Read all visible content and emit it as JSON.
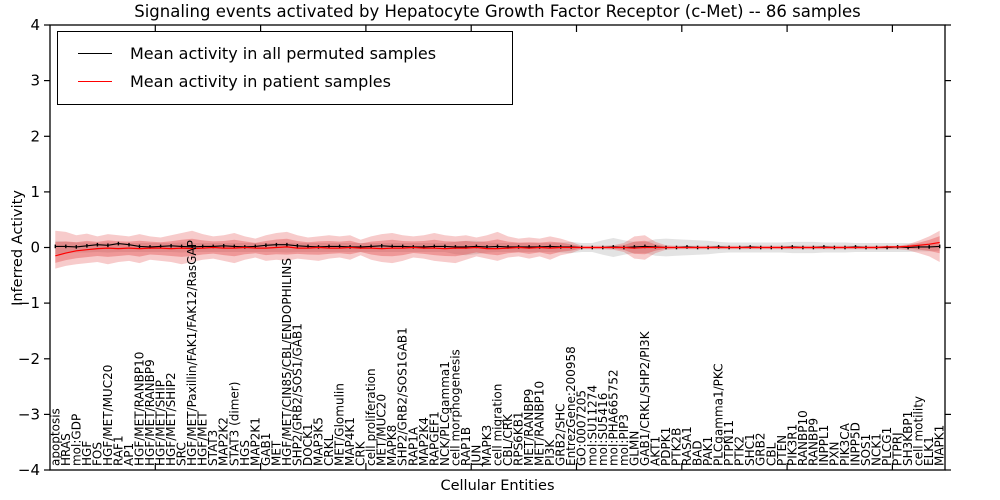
{
  "title": "Signaling events activated by Hepatocyte Growth Factor Receptor (c-Met) -- 86 samples",
  "legend": {
    "position": "upper left",
    "entries": [
      {
        "label": "Mean activity in all permuted samples",
        "color": "#000000"
      },
      {
        "label": "Mean activity in patient samples",
        "color": "#ff0000"
      }
    ]
  },
  "colors": {
    "permuted_line": "#000000",
    "patient_line": "#ff0000",
    "patient_band": "#e03030",
    "permuted_band": "#999999",
    "frame": "#000000"
  },
  "chart_data": {
    "type": "line",
    "title": "Signaling events activated by Hepatocyte Growth Factor Receptor (c-Met) -- 86 samples",
    "xlabel": "Cellular Entities",
    "ylabel": "Inferred Activity",
    "ylim": [
      -4,
      4
    ],
    "ytick_labels": [
      "4",
      "3",
      "2",
      "1",
      "0",
      "−1",
      "−2",
      "−3",
      "−4"
    ],
    "ytick_values": [
      4,
      3,
      2,
      1,
      0,
      -1,
      -2,
      -3,
      -4
    ],
    "grid": false,
    "legend_position": "upper left",
    "categories": [
      "apoptosis",
      "HRAS",
      "mol:GDP",
      "HGF",
      "FOS",
      "HGF/MET/MUC20",
      "RAF1",
      "AP1",
      "HGF/MET/RANBP10",
      "HGF/MET/RANBP9",
      "HGF/MET/SHIP",
      "HGF/MET/SHIP2",
      "SRC",
      "HGF/MET/Paxillin/FAK1/FAK12/RasGAP",
      "HGF/MET",
      "STAT3",
      "MAP2K2",
      "STAT3 (dimer)",
      "HGS",
      "MAP2K1",
      "GAB1",
      "MET",
      "HGF/MET/CIN85/CBL/ENDOPHILINS",
      "SHP2/GRB2/SOS1/GAB1",
      "DOCK1",
      "MAP3K5",
      "CRKL",
      "MET/Glomulin",
      "MAP4K1",
      "CRK",
      "cell proliferation",
      "MET/MUC20",
      "MAPK8",
      "SHP2/GRB2/SOS1GAB1",
      "RAP1A",
      "MAP2K4",
      "RAPGEF1",
      "NCK/PLCgamma1",
      "cell morphogenesis",
      "RAP1B",
      "JUN",
      "MAPK3",
      "cell migration",
      "CBL/CRK",
      "RPS6KB1",
      "MET/RANBP9",
      "MET/RANBP10",
      "PI3K",
      "GRB2/SHC",
      "EntrezGene:200958",
      "GO:0007205",
      "mol:SU11274",
      "mol:SU5416",
      "mol:PHA665752",
      "mol:PIP3",
      "GLMN",
      "GAB1/CRKL/SHP2/PI3K",
      "AKT1",
      "PDPK1",
      "PTK2B",
      "RASA1",
      "BAD",
      "PAK1",
      "PLCgamma1/PKC",
      "PTPN11",
      "PTK2",
      "SHC1",
      "GRB2",
      "CBL",
      "PTEN",
      "PIK3R1",
      "RANBP10",
      "RANBP9",
      "INPPL1",
      "PXN",
      "PIK3CA",
      "INPP5D",
      "SOS1",
      "NCK1",
      "PLCG1",
      "PTPRJ",
      "SH3KBP1",
      "cell motility",
      "ELK1",
      "MAPK1"
    ],
    "series": [
      {
        "name": "Mean activity in all permuted samples",
        "color": "#000000",
        "values": [
          0.02,
          0.02,
          0.01,
          0.03,
          0.05,
          0.04,
          0.07,
          0.05,
          0.02,
          0.01,
          0.02,
          0.03,
          0.02,
          0.01,
          0.02,
          0.02,
          0.03,
          0.02,
          0.01,
          0.02,
          0.04,
          0.05,
          0.05,
          0.03,
          0.02,
          0.01,
          0.02,
          0.02,
          0.01,
          0.01,
          0.02,
          0.03,
          0.02,
          0.02,
          0.01,
          0.01,
          0.02,
          0.02,
          0.01,
          0.01,
          0.02,
          0.01,
          0.02,
          0.01,
          0.01,
          0.01,
          0.01,
          0.02,
          0.01,
          0.01,
          0.0,
          0.0,
          0.0,
          0.01,
          0.0,
          0.01,
          0.02,
          0.01,
          0.0,
          0.0,
          0.01,
          0.0,
          0.0,
          0.01,
          0.0,
          0.0,
          0.01,
          0.0,
          0.0,
          0.0,
          0.01,
          0.0,
          0.0,
          0.01,
          0.0,
          0.0,
          0.01,
          0.0,
          0.0,
          0.0,
          0.01,
          0.0,
          0.01,
          0.01,
          0.02
        ],
        "band_hi": [
          0.12,
          0.1,
          0.09,
          0.09,
          0.08,
          0.09,
          0.08,
          0.08,
          0.08,
          0.08,
          0.08,
          0.08,
          0.09,
          0.08,
          0.08,
          0.08,
          0.08,
          0.08,
          0.08,
          0.08,
          0.08,
          0.08,
          0.09,
          0.08,
          0.08,
          0.08,
          0.08,
          0.08,
          0.08,
          0.08,
          0.08,
          0.08,
          0.08,
          0.08,
          0.08,
          0.08,
          0.08,
          0.08,
          0.1,
          0.12,
          0.12,
          0.09,
          0.08,
          0.08,
          0.08,
          0.08,
          0.08,
          0.08,
          0.09,
          0.1,
          0.08,
          0.08,
          0.13,
          0.17,
          0.13,
          0.1,
          0.1,
          0.15,
          0.16,
          0.15,
          0.14,
          0.13,
          0.12,
          0.1,
          0.09,
          0.09,
          0.09,
          0.09,
          0.09,
          0.09,
          0.1,
          0.1,
          0.1,
          0.09,
          0.09,
          0.09,
          0.08,
          0.08,
          0.08,
          0.08,
          0.08,
          0.08,
          0.07,
          0.07,
          0.06
        ],
        "band_lo": [
          -0.12,
          -0.1,
          -0.09,
          -0.09,
          -0.08,
          -0.09,
          -0.08,
          -0.08,
          -0.08,
          -0.08,
          -0.08,
          -0.08,
          -0.09,
          -0.08,
          -0.08,
          -0.08,
          -0.08,
          -0.08,
          -0.08,
          -0.08,
          -0.08,
          -0.08,
          -0.09,
          -0.08,
          -0.08,
          -0.08,
          -0.08,
          -0.08,
          -0.08,
          -0.08,
          -0.08,
          -0.08,
          -0.08,
          -0.08,
          -0.08,
          -0.08,
          -0.08,
          -0.08,
          -0.12,
          -0.14,
          -0.12,
          -0.09,
          -0.08,
          -0.08,
          -0.08,
          -0.08,
          -0.08,
          -0.08,
          -0.09,
          -0.1,
          -0.08,
          -0.08,
          -0.13,
          -0.17,
          -0.13,
          -0.1,
          -0.1,
          -0.15,
          -0.16,
          -0.15,
          -0.14,
          -0.13,
          -0.12,
          -0.1,
          -0.09,
          -0.09,
          -0.09,
          -0.09,
          -0.09,
          -0.09,
          -0.1,
          -0.1,
          -0.1,
          -0.09,
          -0.09,
          -0.09,
          -0.08,
          -0.08,
          -0.08,
          -0.08,
          -0.08,
          -0.08,
          -0.07,
          -0.07,
          -0.06
        ]
      },
      {
        "name": "Mean activity in patient samples",
        "color": "#ff0000",
        "values": [
          -0.15,
          -0.1,
          -0.06,
          -0.04,
          -0.02,
          -0.01,
          -0.02,
          -0.01,
          -0.02,
          -0.01,
          -0.01,
          -0.02,
          -0.01,
          -0.02,
          -0.01,
          0.0,
          -0.01,
          -0.01,
          0.0,
          -0.01,
          -0.01,
          0.0,
          0.01,
          -0.01,
          -0.01,
          0.0,
          -0.01,
          -0.01,
          0.0,
          -0.01,
          -0.01,
          -0.02,
          -0.01,
          -0.01,
          0.0,
          -0.01,
          -0.01,
          -0.02,
          -0.01,
          -0.01,
          0.0,
          -0.02,
          -0.02,
          -0.01,
          0.0,
          -0.01,
          0.0,
          -0.01,
          0.0,
          0.0,
          0.0,
          0.0,
          0.0,
          0.0,
          0.0,
          -0.01,
          0.0,
          0.0,
          0.0,
          0.0,
          0.0,
          0.0,
          0.0,
          0.0,
          0.0,
          0.0,
          0.0,
          0.0,
          0.0,
          0.0,
          0.0,
          0.0,
          0.0,
          0.0,
          0.0,
          0.0,
          0.0,
          0.0,
          0.0,
          0.01,
          0.01,
          0.02,
          0.04,
          0.06,
          0.09
        ],
        "band_hi": [
          0.3,
          0.28,
          0.22,
          0.25,
          0.2,
          0.24,
          0.22,
          0.2,
          0.24,
          0.2,
          0.18,
          0.22,
          0.26,
          0.3,
          0.24,
          0.2,
          0.22,
          0.26,
          0.2,
          0.16,
          0.22,
          0.26,
          0.28,
          0.22,
          0.18,
          0.2,
          0.22,
          0.2,
          0.22,
          0.14,
          0.2,
          0.24,
          0.26,
          0.22,
          0.2,
          0.22,
          0.26,
          0.22,
          0.2,
          0.22,
          0.18,
          0.22,
          0.28,
          0.2,
          0.16,
          0.18,
          0.16,
          0.2,
          0.16,
          0.1,
          0.03,
          0.03,
          0.03,
          0.04,
          0.08,
          0.2,
          0.22,
          0.1,
          0.04,
          0.03,
          0.03,
          0.03,
          0.03,
          0.03,
          0.03,
          0.03,
          0.03,
          0.03,
          0.03,
          0.03,
          0.03,
          0.03,
          0.03,
          0.03,
          0.03,
          0.03,
          0.03,
          0.03,
          0.03,
          0.03,
          0.03,
          0.06,
          0.12,
          0.2,
          0.3
        ],
        "band_lo": [
          -0.38,
          -0.33,
          -0.3,
          -0.28,
          -0.26,
          -0.3,
          -0.26,
          -0.24,
          -0.28,
          -0.22,
          -0.24,
          -0.26,
          -0.3,
          -0.26,
          -0.22,
          -0.2,
          -0.24,
          -0.28,
          -0.22,
          -0.18,
          -0.24,
          -0.22,
          -0.24,
          -0.2,
          -0.22,
          -0.24,
          -0.2,
          -0.18,
          -0.22,
          -0.14,
          -0.22,
          -0.26,
          -0.28,
          -0.24,
          -0.18,
          -0.2,
          -0.24,
          -0.26,
          -0.28,
          -0.22,
          -0.16,
          -0.2,
          -0.24,
          -0.18,
          -0.16,
          -0.2,
          -0.16,
          -0.22,
          -0.14,
          -0.1,
          -0.03,
          -0.03,
          -0.03,
          -0.04,
          -0.08,
          -0.2,
          -0.22,
          -0.1,
          -0.04,
          -0.03,
          -0.03,
          -0.03,
          -0.03,
          -0.03,
          -0.03,
          -0.03,
          -0.03,
          -0.03,
          -0.03,
          -0.03,
          -0.03,
          -0.03,
          -0.03,
          -0.03,
          -0.03,
          -0.03,
          -0.03,
          -0.03,
          -0.03,
          -0.03,
          -0.03,
          -0.05,
          -0.1,
          -0.16,
          -0.26
        ]
      }
    ]
  }
}
